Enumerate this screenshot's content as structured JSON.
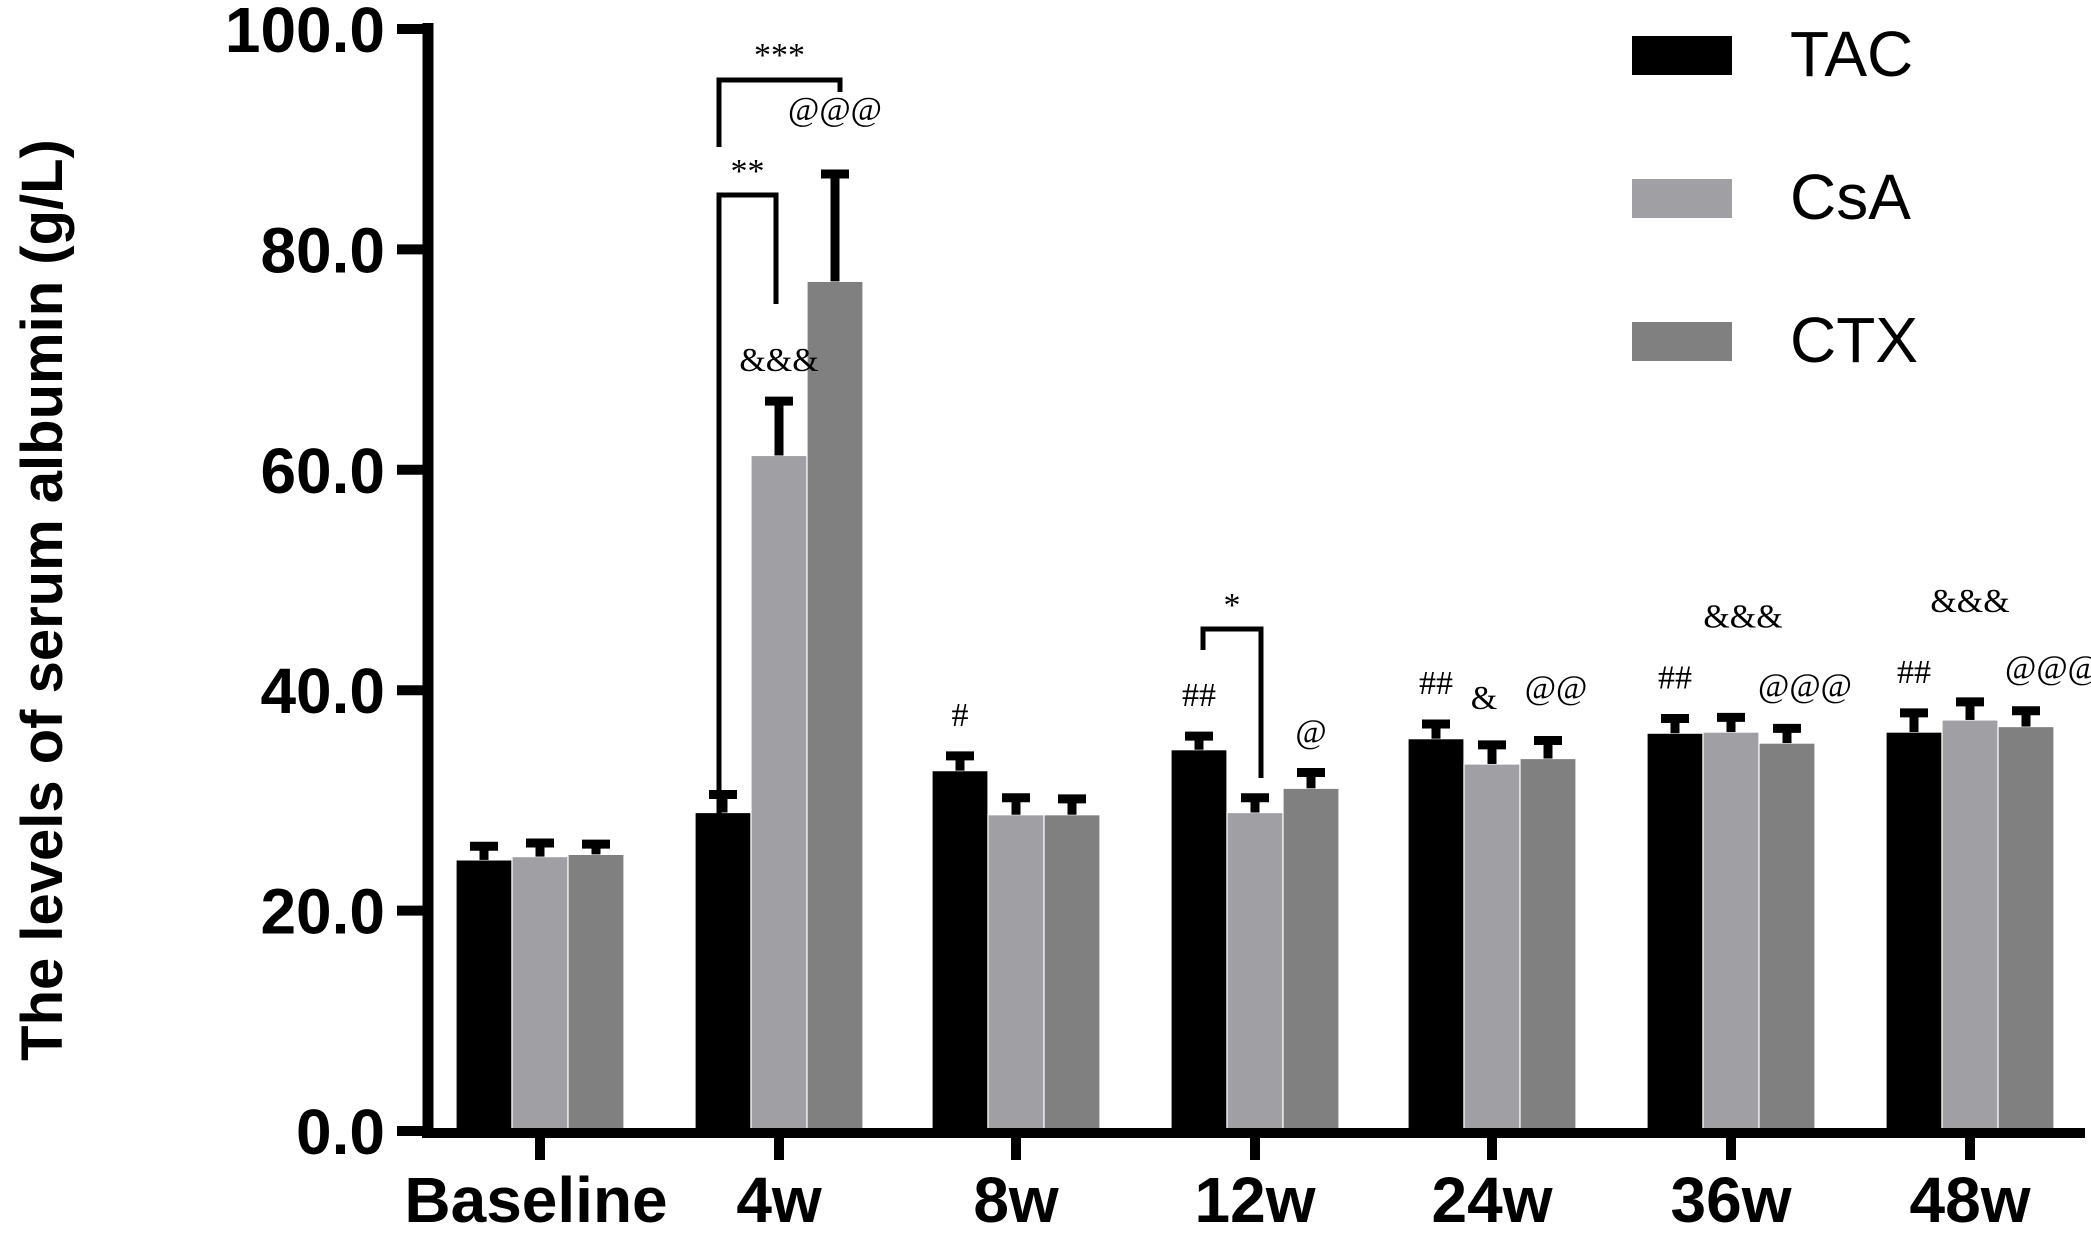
{
  "chart_data": {
    "type": "bar",
    "title": "",
    "xlabel": "",
    "ylabel": "The levels of serum albumin (g/L)",
    "ylim": [
      0,
      100
    ],
    "yticks": [
      "0.0",
      "20.0",
      "40.0",
      "60.0",
      "80.0",
      "100.0"
    ],
    "ytick_values": [
      0,
      20,
      40,
      60,
      80,
      100
    ],
    "categories": [
      "Baseline",
      "4w",
      "8w",
      "12w",
      "24w",
      "36w",
      "48w"
    ],
    "legend_position": "top-right",
    "grid": false,
    "series": [
      {
        "name": "TAC",
        "color": "#000000",
        "values": [
          24.6,
          28.9,
          32.7,
          34.6,
          35.6,
          36.1,
          36.2
        ],
        "error_upper": [
          26.2,
          30.9,
          34.4,
          36.2,
          37.3,
          37.8,
          38.3
        ]
      },
      {
        "name": "CsA",
        "color": "#a0a0a4",
        "values": [
          24.9,
          61.3,
          28.7,
          28.9,
          33.3,
          36.2,
          37.3
        ],
        "error_upper": [
          26.5,
          66.6,
          30.6,
          30.6,
          35.4,
          37.9,
          39.3
        ]
      },
      {
        "name": "CTX",
        "color": "#808080",
        "values": [
          25.1,
          77.1,
          28.7,
          31.1,
          33.8,
          35.2,
          36.7
        ],
        "error_upper": [
          26.4,
          87.2,
          30.5,
          32.9,
          35.8,
          36.9,
          38.5
        ]
      }
    ],
    "brackets": [
      {
        "category": "4w",
        "from": "TAC",
        "to": "CTX",
        "label": "***"
      },
      {
        "category": "4w",
        "from": "TAC",
        "to": "CsA",
        "label": "**"
      },
      {
        "category": "12w",
        "from": "TAC",
        "to": "CsA",
        "label": "*"
      }
    ],
    "annotations": [
      {
        "category": "4w",
        "series": "CsA",
        "label": "&&&"
      },
      {
        "category": "4w",
        "series": "CTX",
        "label": "@@@"
      },
      {
        "category": "8w",
        "series": "TAC",
        "label": "#"
      },
      {
        "category": "12w",
        "series": "TAC",
        "label": "##"
      },
      {
        "category": "12w",
        "series": "CTX",
        "label": "@"
      },
      {
        "category": "24w",
        "series": "TAC",
        "label": "##"
      },
      {
        "category": "24w",
        "series": "CsA",
        "label": "&"
      },
      {
        "category": "24w",
        "series": "CTX",
        "label": "@@"
      },
      {
        "category": "36w",
        "series": "TAC",
        "label": "##"
      },
      {
        "category": "36w",
        "series": "CsA",
        "label": "&&&"
      },
      {
        "category": "36w",
        "series": "CTX",
        "label": "@@@"
      },
      {
        "category": "48w",
        "series": "TAC",
        "label": "##"
      },
      {
        "category": "48w",
        "series": "CsA",
        "label": "&&&"
      },
      {
        "category": "48w",
        "series": "CTX",
        "label": "@@@"
      }
    ]
  }
}
